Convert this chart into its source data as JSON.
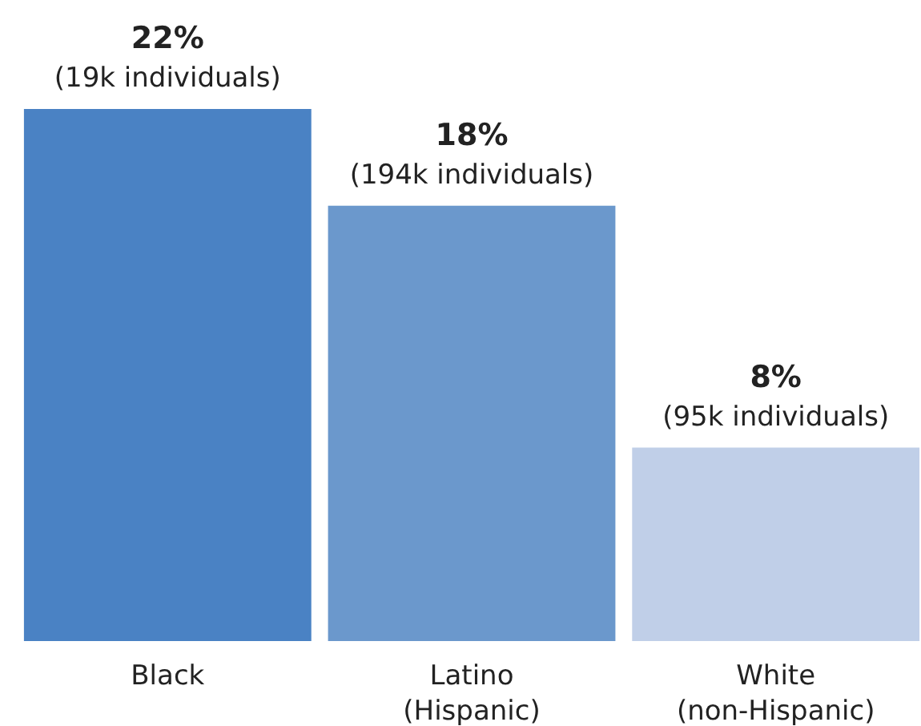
{
  "chart_data": {
    "type": "bar",
    "categories": [
      "Black",
      "Latino\n(Hispanic)",
      "White\n(non-Hispanic)"
    ],
    "values": [
      22,
      18,
      8
    ],
    "colors": [
      "#4a82c4",
      "#6b98cc",
      "#c0cfe8"
    ],
    "value_labels": [
      "22%\n(19k individuals)",
      "18%\n(194k individuals)",
      "8%\n(95k individuals)"
    ]
  }
}
